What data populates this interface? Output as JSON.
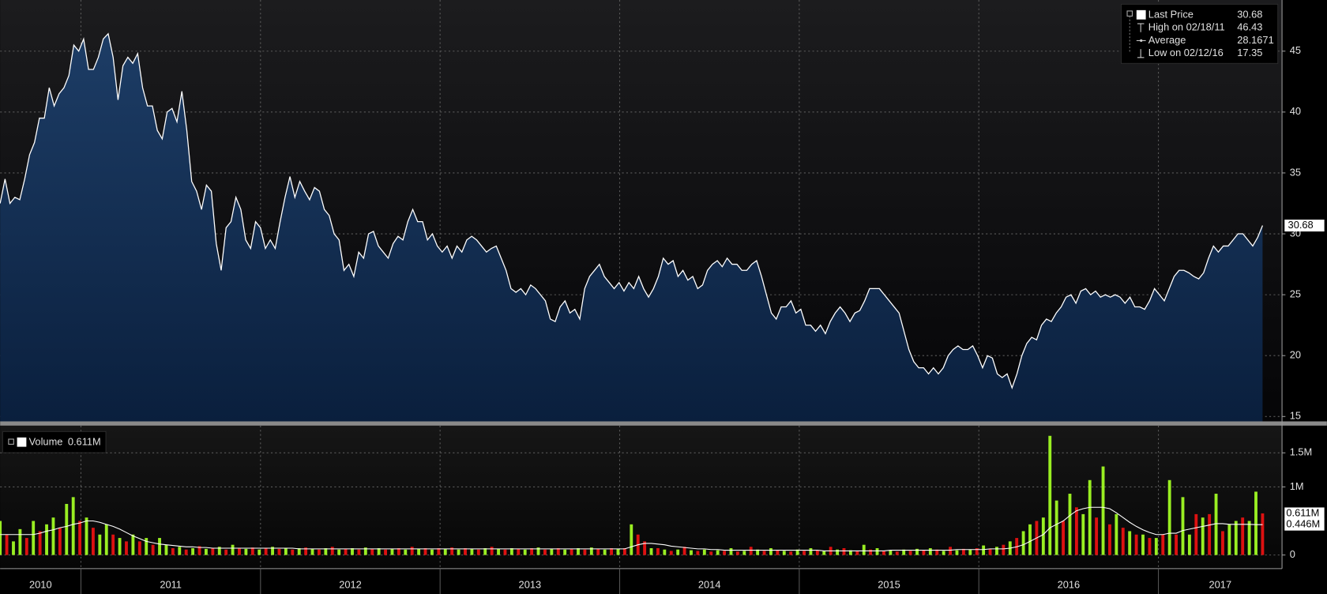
{
  "chart_data": [
    {
      "type": "area",
      "color": "#ffffff",
      "fill_top": "#1d3d66",
      "fill_bottom": "#0a1f3d",
      "ylim": [
        14.6,
        49.2
      ],
      "yticks": [
        15,
        20,
        25,
        30,
        35,
        40,
        45
      ],
      "grid": true,
      "legend": [
        {
          "name": "Last Price",
          "value": 30.68
        },
        {
          "name": "High on 02/18/11",
          "value": 46.43
        },
        {
          "name": "Average",
          "value": 28.1671
        },
        {
          "name": "Low on 02/12/16",
          "value": 17.35
        }
      ],
      "values": [
        32.5,
        34.5,
        32.5,
        33,
        32.8,
        34.5,
        36.5,
        37.5,
        39.5,
        39.5,
        42,
        40.5,
        41.5,
        42,
        43,
        45.5,
        45,
        46,
        43.5,
        43.5,
        44.5,
        46,
        46.43,
        44.5,
        41,
        43.8,
        44.5,
        44,
        44.8,
        42,
        40.5,
        40.5,
        38.5,
        37.8,
        40,
        40.3,
        39.2,
        41.7,
        38.5,
        34.3,
        33.5,
        32,
        34,
        33.5,
        29.2,
        27,
        30.5,
        31,
        33,
        32,
        29.5,
        28.8,
        31,
        30.5,
        28.8,
        29.5,
        28.8,
        31,
        33,
        34.7,
        33,
        34.3,
        33.5,
        32.8,
        33.8,
        33.5,
        32,
        31.5,
        30,
        29.5,
        27,
        27.5,
        26.5,
        28.5,
        28,
        30,
        30.2,
        29,
        28.5,
        28,
        29.2,
        29.8,
        29.5,
        31,
        32,
        31,
        31,
        29.5,
        30,
        29,
        28.5,
        29,
        28,
        29,
        28.5,
        29.5,
        29.8,
        29.5,
        29,
        28.5,
        28.8,
        29,
        28,
        27,
        25.5,
        25.2,
        25.5,
        25,
        25.8,
        25.5,
        25,
        24.5,
        23,
        22.8,
        24,
        24.5,
        23.5,
        23.8,
        23,
        25.5,
        26.5,
        27,
        27.5,
        26.5,
        26,
        25.5,
        26,
        25.3,
        26,
        25.5,
        26.5,
        25.5,
        24.8,
        25.5,
        26.5,
        28,
        27.5,
        27.8,
        26.5,
        27,
        26.2,
        26.5,
        25.5,
        25.8,
        27,
        27.5,
        27.8,
        27.3,
        28,
        27.5,
        27.5,
        27,
        27,
        27.5,
        27.8,
        26.5,
        25,
        23.5,
        23,
        24,
        24,
        24.5,
        23.5,
        23.8,
        22.5,
        22.5,
        22,
        22.5,
        21.8,
        22.8,
        23.5,
        24,
        23.5,
        22.8,
        23.5,
        23.7,
        24.5,
        25.5,
        25.5,
        25.5,
        25,
        24.5,
        24,
        23.5,
        22,
        20.5,
        19.5,
        19,
        19,
        18.5,
        19,
        18.5,
        19,
        20,
        20.5,
        20.8,
        20.5,
        20.5,
        20.8,
        20,
        19,
        20,
        19.8,
        18.5,
        18.2,
        18.5,
        17.35,
        18.5,
        20,
        21,
        21.5,
        21.3,
        22.5,
        23,
        22.8,
        23.5,
        24,
        24.8,
        25,
        24.3,
        25.3,
        25.5,
        25,
        25.3,
        24.8,
        25,
        24.8,
        25,
        24.8,
        24.3,
        24.8,
        24,
        24,
        23.8,
        24.5,
        25.5,
        25,
        24.5,
        25.5,
        26.5,
        27,
        27,
        26.8,
        26.5,
        26.3,
        26.8,
        28,
        29,
        28.5,
        29,
        29,
        29.5,
        30,
        30,
        29.5,
        29,
        29.7,
        30.68
      ]
    },
    {
      "type": "bar",
      "ylim": [
        -0.2,
        1.9
      ],
      "yticks": [
        0,
        {
          "value": 1,
          "label": "1M"
        },
        {
          "value": 1.5,
          "label": "1.5M"
        }
      ],
      "grid": true,
      "xlim": [
        2010.55,
        2017.58
      ],
      "xticks": [
        2011,
        2012,
        2013,
        2014,
        2015,
        2016,
        2017
      ],
      "xlabels": [
        "2010",
        "2011",
        "2012",
        "2013",
        "2014",
        "2015",
        "2016",
        "2017"
      ],
      "series": [
        {
          "name": "Volume",
          "value_label": "0.611M",
          "values": [
            0.5,
            0.3,
            0.2,
            0.38,
            0.25,
            0.5,
            0.35,
            0.45,
            0.55,
            0.4,
            0.75,
            0.85,
            0.5,
            0.55,
            0.4,
            0.3,
            0.45,
            0.3,
            0.25,
            0.2,
            0.3,
            0.2,
            0.25,
            0.15,
            0.25,
            0.15,
            0.1,
            0.12,
            0.08,
            0.1,
            0.13,
            0.09,
            0.1,
            0.12,
            0.08,
            0.15,
            0.1,
            0.09,
            0.11,
            0.08,
            0.1,
            0.12,
            0.09,
            0.1,
            0.08,
            0.1,
            0.11,
            0.09,
            0.08,
            0.1,
            0.12,
            0.08,
            0.09,
            0.1,
            0.08,
            0.11,
            0.09,
            0.1,
            0.08,
            0.09,
            0.1,
            0.08,
            0.12,
            0.09,
            0.1,
            0.08,
            0.1,
            0.09,
            0.11,
            0.08,
            0.1,
            0.09,
            0.08,
            0.1,
            0.12,
            0.09,
            0.08,
            0.1,
            0.09,
            0.08,
            0.1,
            0.11,
            0.08,
            0.09,
            0.1,
            0.08,
            0.09,
            0.1,
            0.08,
            0.11,
            0.09,
            0.08,
            0.1,
            0.09,
            0.1,
            0.45,
            0.3,
            0.2,
            0.1,
            0.1,
            0.08,
            0.06,
            0.08,
            0.12,
            0.07,
            0.06,
            0.08,
            0.05,
            0.07,
            0.06,
            0.1,
            0.05,
            0.06,
            0.12,
            0.08,
            0.06,
            0.1,
            0.07,
            0.06,
            0.05,
            0.08,
            0.06,
            0.1,
            0.07,
            0.06,
            0.12,
            0.08,
            0.1,
            0.07,
            0.06,
            0.15,
            0.08,
            0.1,
            0.06,
            0.07,
            0.05,
            0.08,
            0.06,
            0.09,
            0.07,
            0.1,
            0.08,
            0.06,
            0.12,
            0.07,
            0.09,
            0.08,
            0.1,
            0.14,
            0.09,
            0.12,
            0.15,
            0.2,
            0.25,
            0.35,
            0.45,
            0.5,
            0.55,
            1.75,
            0.8,
            0.5,
            0.9,
            0.7,
            0.6,
            1.1,
            0.55,
            1.3,
            0.45,
            0.6,
            0.4,
            0.35,
            0.3,
            0.3,
            0.25,
            0.25,
            0.3,
            1.1,
            0.3,
            0.85,
            0.3,
            0.6,
            0.55,
            0.6,
            0.9,
            0.35,
            0.45,
            0.5,
            0.55,
            0.5,
            0.93,
            0.611
          ],
          "colors": [
            "#9e2",
            "#d11",
            "#9e2",
            "#9e2",
            "#d11",
            "#9e2",
            "#d11",
            "#9e2",
            "#9e2",
            "#d11",
            "#9e2",
            "#9e2",
            "#d11",
            "#9e2",
            "#d11",
            "#9e2",
            "#9e2",
            "#d11",
            "#9e2",
            "#d11",
            "#9e2",
            "#d11",
            "#9e2",
            "#d11",
            "#9e2",
            "#9e2",
            "#d11",
            "#9e2",
            "#d11",
            "#9e2",
            "#d11",
            "#9e2",
            "#d11",
            "#9e2",
            "#d11",
            "#9e2",
            "#d11",
            "#9e2",
            "#d11",
            "#9e2",
            "#d11",
            "#9e2",
            "#d11",
            "#9e2",
            "#d11",
            "#9e2",
            "#d11",
            "#9e2",
            "#d11",
            "#9e2",
            "#d11",
            "#9e2",
            "#d11",
            "#9e2",
            "#d11",
            "#9e2",
            "#d11",
            "#9e2",
            "#d11",
            "#9e2",
            "#d11",
            "#9e2",
            "#d11",
            "#9e2",
            "#d11",
            "#9e2",
            "#d11",
            "#9e2",
            "#d11",
            "#9e2",
            "#d11",
            "#9e2",
            "#d11",
            "#9e2",
            "#d11",
            "#9e2",
            "#d11",
            "#9e2",
            "#d11",
            "#9e2",
            "#d11",
            "#9e2",
            "#d11",
            "#9e2",
            "#d11",
            "#9e2",
            "#d11",
            "#9e2",
            "#d11",
            "#9e2",
            "#d11",
            "#9e2",
            "#d11",
            "#9e2",
            "#d11",
            "#9e2",
            "#d11",
            "#d11",
            "#9e2",
            "#d11",
            "#9e2",
            "#d11",
            "#9e2",
            "#d11",
            "#9e2",
            "#d11",
            "#9e2",
            "#d11",
            "#9e2",
            "#d11",
            "#9e2",
            "#d11",
            "#9e2",
            "#d11",
            "#9e2",
            "#d11",
            "#9e2",
            "#d11",
            "#9e2",
            "#d11",
            "#9e2",
            "#d11",
            "#9e2",
            "#d11",
            "#9e2",
            "#d11",
            "#9e2",
            "#d11",
            "#9e2",
            "#d11",
            "#9e2",
            "#d11",
            "#9e2",
            "#d11",
            "#9e2",
            "#d11",
            "#9e2",
            "#d11",
            "#9e2",
            "#d11",
            "#9e2",
            "#d11",
            "#9e2",
            "#d11",
            "#9e2",
            "#d11",
            "#9e2",
            "#d11",
            "#9e2",
            "#d11",
            "#9e2",
            "#d11",
            "#9e2",
            "#d11",
            "#9e2",
            "#9e2",
            "#d11",
            "#9e2",
            "#9e2",
            "#9e2",
            "#d11",
            "#9e2",
            "#d11",
            "#9e2",
            "#9e2",
            "#d11",
            "#9e2",
            "#d11",
            "#9e2",
            "#d11",
            "#9e2",
            "#d11",
            "#9e2",
            "#d11",
            "#9e2",
            "#d11",
            "#9e2",
            "#d11",
            "#9e2",
            "#9e2",
            "#d11",
            "#9e2",
            "#d11",
            "#9e2",
            "#d11",
            "#9e2",
            "#9e2",
            "#d11",
            "#9e2",
            "#9e2",
            "#d11"
          ]
        },
        {
          "color": "#ffffff",
          "value_label": "0.446M",
          "values": [
            0.3,
            0.3,
            0.3,
            0.3,
            0.3,
            0.3,
            0.32,
            0.35,
            0.37,
            0.4,
            0.42,
            0.45,
            0.47,
            0.5,
            0.5,
            0.48,
            0.45,
            0.42,
            0.38,
            0.33,
            0.28,
            0.24,
            0.2,
            0.18,
            0.16,
            0.15,
            0.14,
            0.13,
            0.12,
            0.12,
            0.11,
            0.11,
            0.1,
            0.1,
            0.1,
            0.1,
            0.1,
            0.1,
            0.1,
            0.1,
            0.1,
            0.1,
            0.1,
            0.1,
            0.1,
            0.09,
            0.09,
            0.09,
            0.09,
            0.09,
            0.09,
            0.09,
            0.09,
            0.09,
            0.09,
            0.09,
            0.09,
            0.09,
            0.09,
            0.09,
            0.09,
            0.09,
            0.09,
            0.09,
            0.09,
            0.09,
            0.09,
            0.09,
            0.09,
            0.09,
            0.09,
            0.09,
            0.09,
            0.09,
            0.09,
            0.09,
            0.09,
            0.09,
            0.09,
            0.09,
            0.09,
            0.09,
            0.09,
            0.09,
            0.09,
            0.09,
            0.09,
            0.09,
            0.09,
            0.09,
            0.09,
            0.09,
            0.09,
            0.09,
            0.09,
            0.12,
            0.15,
            0.17,
            0.17,
            0.16,
            0.15,
            0.13,
            0.12,
            0.11,
            0.1,
            0.09,
            0.09,
            0.08,
            0.08,
            0.07,
            0.07,
            0.07,
            0.07,
            0.07,
            0.07,
            0.07,
            0.07,
            0.07,
            0.07,
            0.07,
            0.07,
            0.07,
            0.07,
            0.07,
            0.06,
            0.06,
            0.06,
            0.06,
            0.06,
            0.06,
            0.06,
            0.06,
            0.06,
            0.06,
            0.07,
            0.07,
            0.07,
            0.07,
            0.07,
            0.07,
            0.07,
            0.07,
            0.07,
            0.07,
            0.08,
            0.08,
            0.08,
            0.08,
            0.08,
            0.09,
            0.09,
            0.09,
            0.1,
            0.12,
            0.15,
            0.2,
            0.25,
            0.3,
            0.4,
            0.45,
            0.5,
            0.58,
            0.65,
            0.68,
            0.7,
            0.7,
            0.7,
            0.68,
            0.62,
            0.55,
            0.48,
            0.42,
            0.37,
            0.33,
            0.3,
            0.3,
            0.32,
            0.32,
            0.36,
            0.38,
            0.4,
            0.42,
            0.44,
            0.46,
            0.46,
            0.45,
            0.45,
            0.45,
            0.45,
            0.446,
            0.446
          ]
        }
      ]
    }
  ]
}
